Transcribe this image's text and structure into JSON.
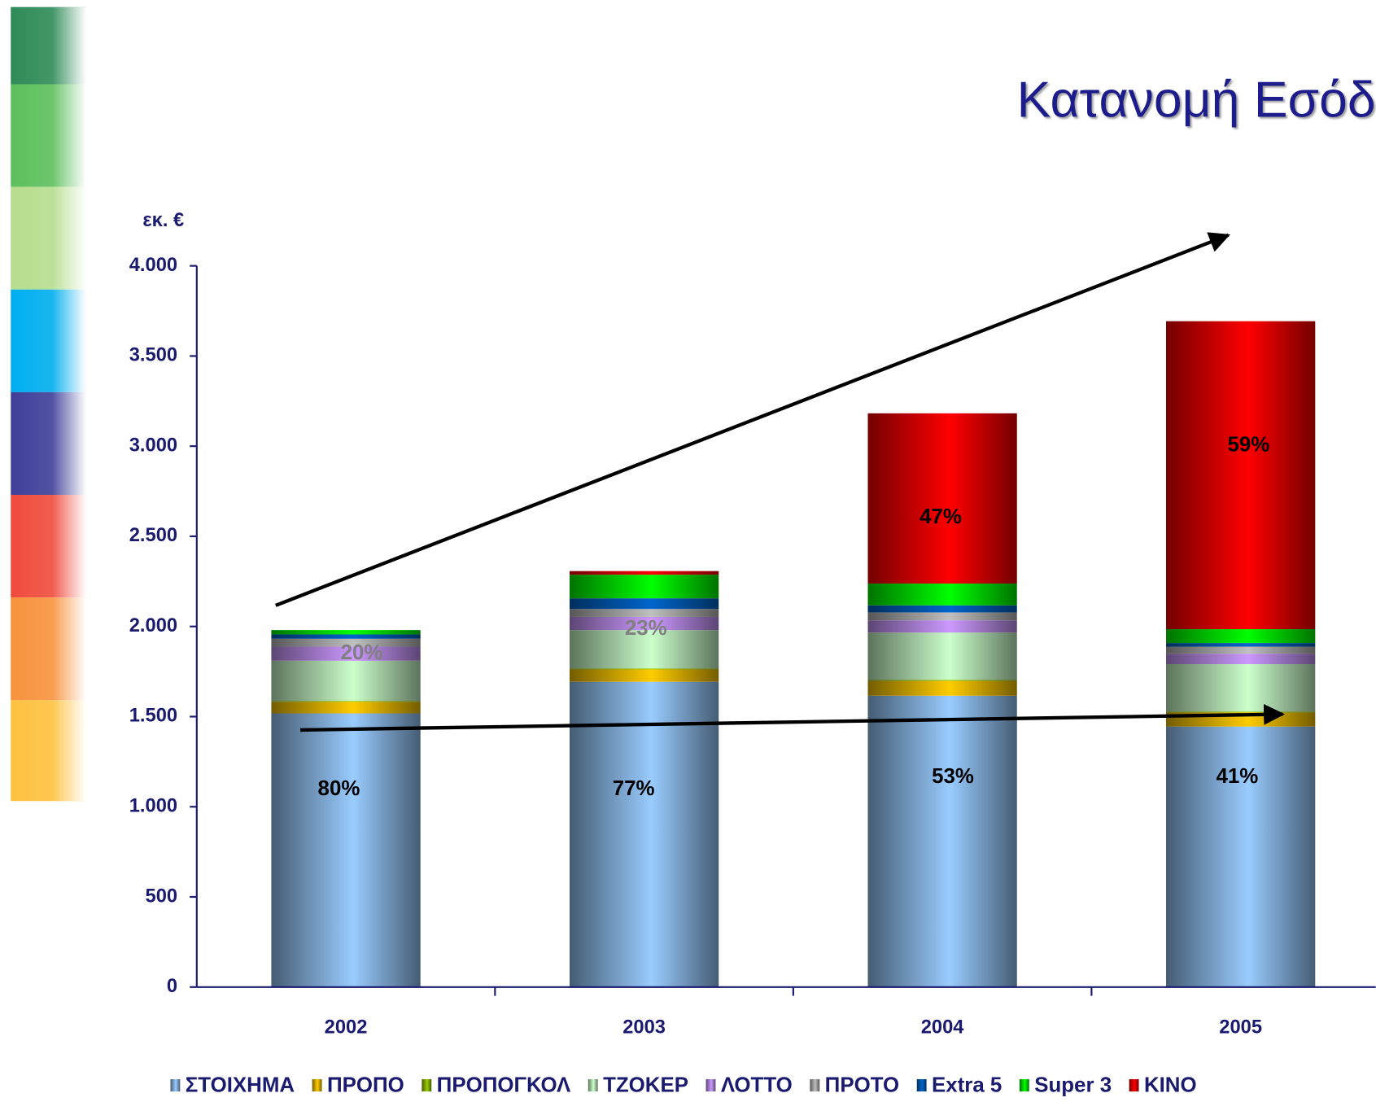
{
  "chart_data": {
    "type": "stacked_bar",
    "title": "Κατανομή Εσόδ",
    "y_label": "εκ. €",
    "categories": [
      "2002",
      "2003",
      "2004",
      "2005"
    ],
    "series": [
      {
        "name": "ΣΤΟΙΧΗΜΑ",
        "color": "#99ccff",
        "values": [
          1518,
          1693,
          1616,
          1445
        ]
      },
      {
        "name": "ΠΡΟΠΟ",
        "color": "#ffcc00",
        "values": [
          64,
          69,
          82,
          78
        ]
      },
      {
        "name": "ΠΡΟΠΟΓΚΟΛ",
        "color": "#99cc00",
        "values": [
          5,
          5,
          5,
          5
        ]
      },
      {
        "name": "ΤΖΟΚΕΡ",
        "color": "#ccffcc",
        "values": [
          223,
          213,
          263,
          263
        ]
      },
      {
        "name": "ΛΟΤΤΟ",
        "color": "#cc99ff",
        "values": [
          78,
          73,
          68,
          58
        ]
      },
      {
        "name": "ΠΡΟΤΟ",
        "color": "#c0c0c0",
        "values": [
          44,
          44,
          44,
          39
        ]
      },
      {
        "name": "Extra 5",
        "color": "#0066cc",
        "values": [
          24,
          59,
          39,
          20
        ]
      },
      {
        "name": "Super 3",
        "color": "#00ff00",
        "values": [
          24,
          131,
          121,
          77
        ]
      },
      {
        "name": "ΚΙΝΟ",
        "color": "#ff0000",
        "values": [
          0,
          20,
          944,
          1708
        ]
      }
    ],
    "annotations": [
      {
        "text": "80%",
        "color": "#000000"
      },
      {
        "text": "20%",
        "color": "#808080"
      },
      {
        "text": "77%",
        "color": "#000000"
      },
      {
        "text": "23%",
        "color": "#808080"
      },
      {
        "text": "53%",
        "color": "#000000"
      },
      {
        "text": "47%",
        "color": "#000000"
      },
      {
        "text": "41%",
        "color": "#000000"
      },
      {
        "text": "59%",
        "color": "#000000"
      }
    ],
    "ylim": [
      0,
      4000
    ],
    "yticks": [
      0,
      500,
      {
        "value": 1000,
        "label": "1.000"
      },
      {
        "value": 1500,
        "label": "1.500"
      },
      {
        "value": 2000,
        "label": "2.000"
      },
      {
        "value": 2500,
        "label": "2.500"
      },
      {
        "value": 3000,
        "label": "3.000"
      },
      {
        "value": 3500,
        "label": "3.500"
      },
      {
        "value": 4000,
        "label": "4.000"
      }
    ]
  }
}
